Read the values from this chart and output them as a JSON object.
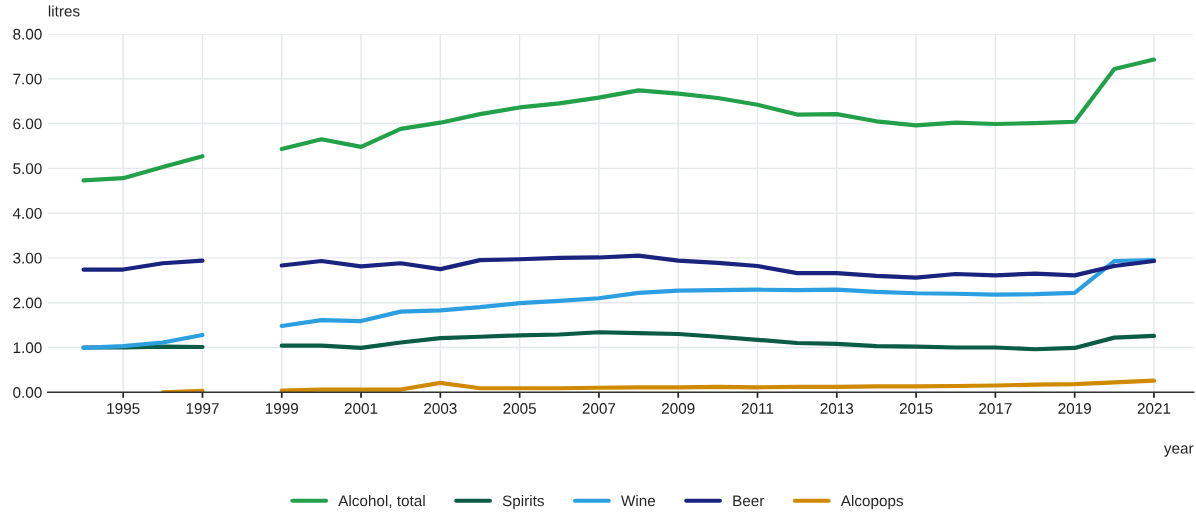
{
  "chart_data": {
    "type": "line",
    "ylabel": "litres",
    "xlabel": "year",
    "x": [
      1994,
      1995,
      1996,
      1997,
      1998,
      1999,
      2000,
      2001,
      2002,
      2003,
      2004,
      2005,
      2006,
      2007,
      2008,
      2009,
      2010,
      2011,
      2012,
      2013,
      2014,
      2015,
      2016,
      2017,
      2018,
      2019,
      2020,
      2021
    ],
    "xlim": [
      1993.1,
      2022
    ],
    "xticks": [
      1995,
      1997,
      1999,
      2001,
      2003,
      2005,
      2007,
      2009,
      2011,
      2013,
      2015,
      2017,
      2019,
      2021
    ],
    "ylim": [
      0,
      8
    ],
    "yticks": [
      {
        "value": 0,
        "label": "0.00"
      },
      {
        "value": 1,
        "label": "1.00"
      },
      {
        "value": 2,
        "label": "2.00"
      },
      {
        "value": 3,
        "label": "3.00"
      },
      {
        "value": 4,
        "label": "4.00"
      },
      {
        "value": 5,
        "label": "5.00"
      },
      {
        "value": 6,
        "label": "6.00"
      },
      {
        "value": 7,
        "label": "7.00"
      },
      {
        "value": 8,
        "label": "8.00"
      }
    ],
    "grid": true,
    "legend": "bottom",
    "marker": "none",
    "line_style": "solid",
    "series": [
      {
        "name": "Alcohol, total",
        "color": "#22a14a",
        "values": [
          4.73,
          4.78,
          5.03,
          5.27,
          null,
          5.43,
          5.65,
          5.48,
          5.88,
          6.02,
          6.21,
          6.36,
          6.45,
          6.58,
          6.74,
          6.67,
          6.57,
          6.42,
          6.2,
          6.21,
          6.05,
          5.96,
          6.02,
          5.99,
          6.01,
          6.04,
          7.22,
          7.43
        ]
      },
      {
        "name": "Spirits",
        "color": "#0b5c45",
        "values": [
          1.0,
          1.0,
          1.02,
          1.01,
          null,
          1.04,
          1.04,
          0.99,
          1.11,
          1.21,
          1.24,
          1.27,
          1.29,
          1.34,
          1.32,
          1.3,
          1.24,
          1.17,
          1.1,
          1.08,
          1.03,
          1.02,
          1.0,
          1.0,
          0.96,
          0.99,
          1.22,
          1.26
        ]
      },
      {
        "name": "Wine",
        "color": "#2b9fe0",
        "values": [
          0.99,
          1.03,
          1.11,
          1.28,
          null,
          1.48,
          1.61,
          1.59,
          1.8,
          1.83,
          1.9,
          1.99,
          2.04,
          2.1,
          2.22,
          2.27,
          2.28,
          2.29,
          2.28,
          2.29,
          2.24,
          2.21,
          2.2,
          2.18,
          2.19,
          2.22,
          2.93,
          2.95
        ]
      },
      {
        "name": "Beer",
        "color": "#1a237e",
        "values": [
          2.74,
          2.74,
          2.88,
          2.94,
          null,
          2.83,
          2.93,
          2.81,
          2.88,
          2.75,
          2.95,
          2.97,
          3.0,
          3.01,
          3.05,
          2.94,
          2.89,
          2.82,
          2.66,
          2.66,
          2.6,
          2.56,
          2.64,
          2.61,
          2.65,
          2.61,
          2.82,
          2.93
        ]
      },
      {
        "name": "Alcopops",
        "color": "#d08a00",
        "values": [
          null,
          null,
          0.0,
          0.03,
          null,
          0.04,
          0.06,
          0.06,
          0.06,
          0.21,
          0.09,
          0.09,
          0.09,
          0.1,
          0.11,
          0.11,
          0.12,
          0.11,
          0.12,
          0.12,
          0.13,
          0.13,
          0.14,
          0.15,
          0.17,
          0.18,
          0.22,
          0.26
        ]
      }
    ]
  }
}
